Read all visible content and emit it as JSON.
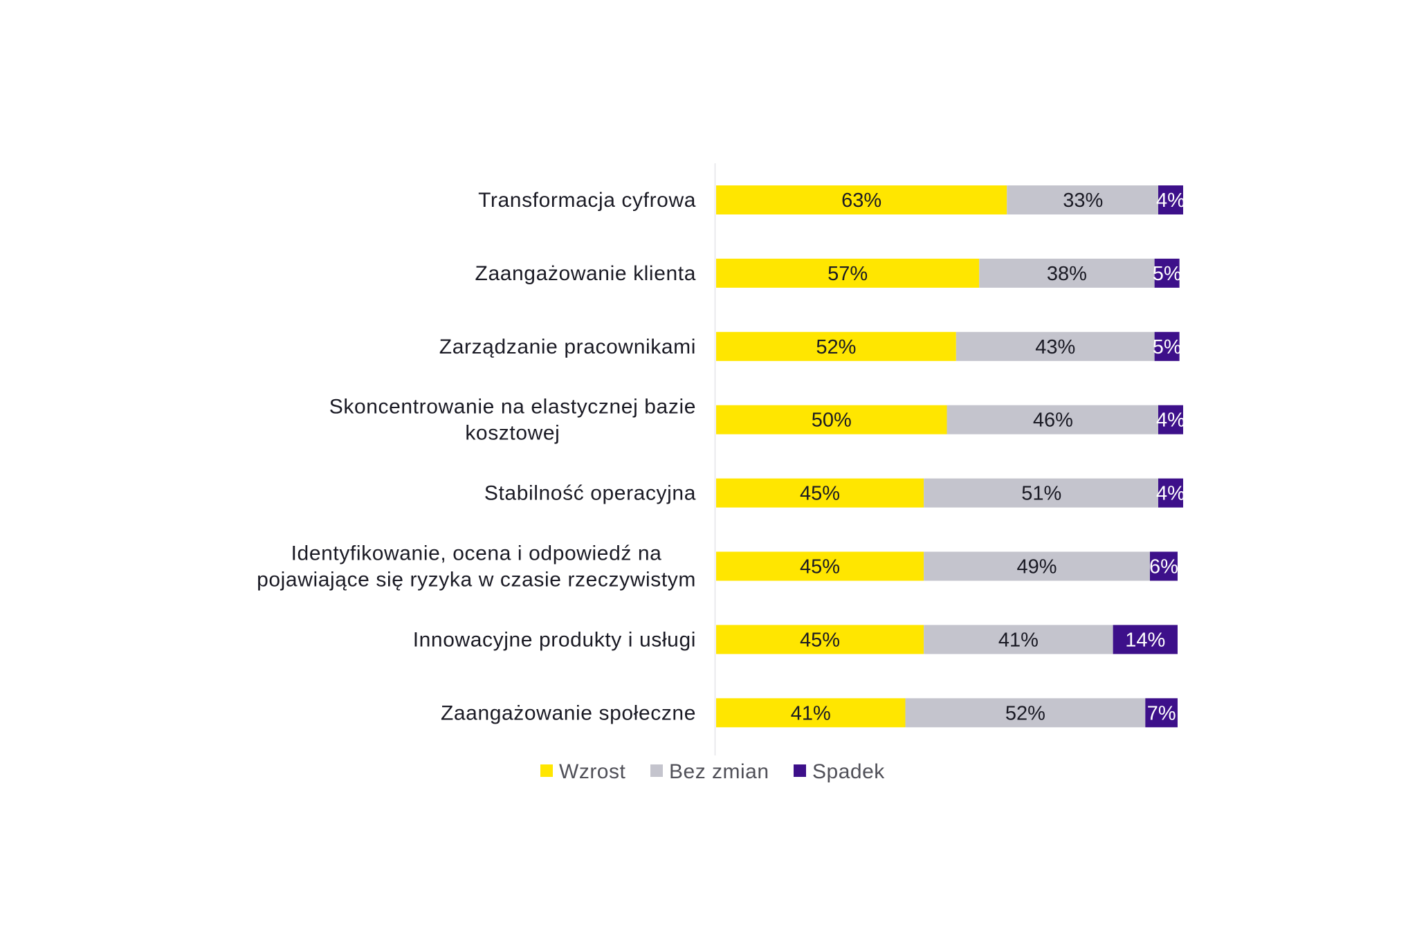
{
  "chart_data": {
    "type": "bar",
    "orientation": "horizontal",
    "stacked": true,
    "title": "",
    "xlabel": "",
    "ylabel": "",
    "xlim": [
      0,
      100
    ],
    "value_format": "{v}%",
    "grid": false,
    "legend_position": "bottom",
    "categories": [
      "Transformacja cyfrowa",
      "Zaangażowanie klienta",
      "Zarządzanie pracownikami",
      "Skoncentrowanie na elastycznej bazie kosztowej",
      "Stabilność operacyjna",
      "Identyfikowanie, ocena i odpowiedź na pojawiające się ryzyka w czasie rzeczywistym",
      "Innowacyjne produkty i usługi",
      "Zaangażowanie społeczne"
    ],
    "category_lines": [
      [
        "Transformacja cyfrowa"
      ],
      [
        "Zaangażowanie klienta"
      ],
      [
        "Zarządzanie pracownikami"
      ],
      [
        "Skoncentrowanie na elastycznej bazie",
        "kosztowej"
      ],
      [
        "Stabilność operacyjna"
      ],
      [
        "Identyfikowanie, ocena i odpowiedź na",
        "pojawiające się ryzyka w czasie rzeczywistym"
      ],
      [
        "Innowacyjne produkty i usługi"
      ],
      [
        "Zaangażowanie społeczne"
      ]
    ],
    "series": [
      {
        "name": "Wzrost",
        "color": "#FFE600",
        "label_color": "#1a1a24",
        "values": [
          63,
          57,
          52,
          50,
          45,
          45,
          45,
          41
        ]
      },
      {
        "name": "Bez zmian",
        "color": "#C4C4CD",
        "label_color": "#1a1a24",
        "values": [
          33,
          38,
          43,
          46,
          51,
          49,
          41,
          52
        ]
      },
      {
        "name": "Spadek",
        "color": "#3D108A",
        "label_color": "#ffffff",
        "values": [
          4,
          5,
          5,
          4,
          4,
          6,
          14,
          7
        ]
      }
    ]
  }
}
